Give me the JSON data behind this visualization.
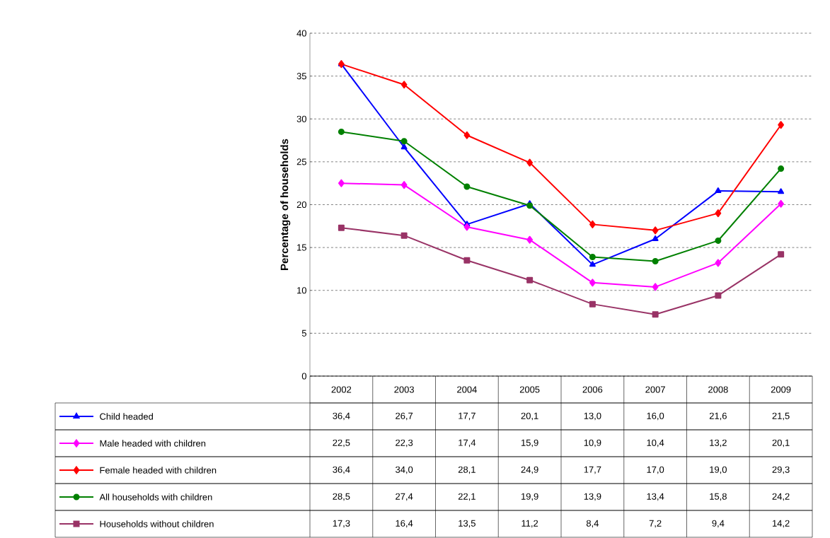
{
  "chart_data": {
    "type": "line",
    "ylabel": "Percentage of households",
    "categories": [
      "2002",
      "2003",
      "2004",
      "2005",
      "2006",
      "2007",
      "2008",
      "2009"
    ],
    "ylim": [
      0,
      40
    ],
    "yticks": [
      0,
      5,
      10,
      15,
      20,
      25,
      30,
      35,
      40
    ],
    "grid": "y",
    "legend": "bottom",
    "line_style": "solid",
    "series": [
      {
        "name": "Child headed",
        "color": "#0000ff",
        "marker": "triangle",
        "values": [
          36.4,
          26.7,
          17.7,
          20.1,
          13.0,
          16.0,
          21.6,
          21.5
        ],
        "value_labels": [
          "36,4",
          "26,7",
          "17,7",
          "20,1",
          "13,0",
          "16,0",
          "21,6",
          "21,5"
        ]
      },
      {
        "name": "Male headed with children",
        "color": "#ff00ff",
        "marker": "diamond",
        "values": [
          22.5,
          22.3,
          17.4,
          15.9,
          10.9,
          10.4,
          13.2,
          20.1
        ],
        "value_labels": [
          "22,5",
          "22,3",
          "17,4",
          "15,9",
          "10,9",
          "10,4",
          "13,2",
          "20,1"
        ]
      },
      {
        "name": "Female headed with children",
        "color": "#ff0000",
        "marker": "diamond",
        "values": [
          36.4,
          34.0,
          28.1,
          24.9,
          17.7,
          17.0,
          19.0,
          29.3
        ],
        "value_labels": [
          "36,4",
          "34,0",
          "28,1",
          "24,9",
          "17,7",
          "17,0",
          "19,0",
          "29,3"
        ]
      },
      {
        "name": "All households with children",
        "color": "#008000",
        "marker": "circle",
        "values": [
          28.5,
          27.4,
          22.1,
          19.9,
          13.9,
          13.4,
          15.8,
          24.2
        ],
        "value_labels": [
          "28,5",
          "27,4",
          "22,1",
          "19,9",
          "13,9",
          "13,4",
          "15,8",
          "24,2"
        ]
      },
      {
        "name": "Households without children",
        "color": "#993366",
        "marker": "square",
        "values": [
          17.3,
          16.4,
          13.5,
          11.2,
          8.4,
          7.2,
          9.4,
          14.2
        ],
        "value_labels": [
          "17,3",
          "16,4",
          "13,5",
          "11,2",
          "8,4",
          "7,2",
          "9,4",
          "14,2"
        ]
      }
    ]
  }
}
